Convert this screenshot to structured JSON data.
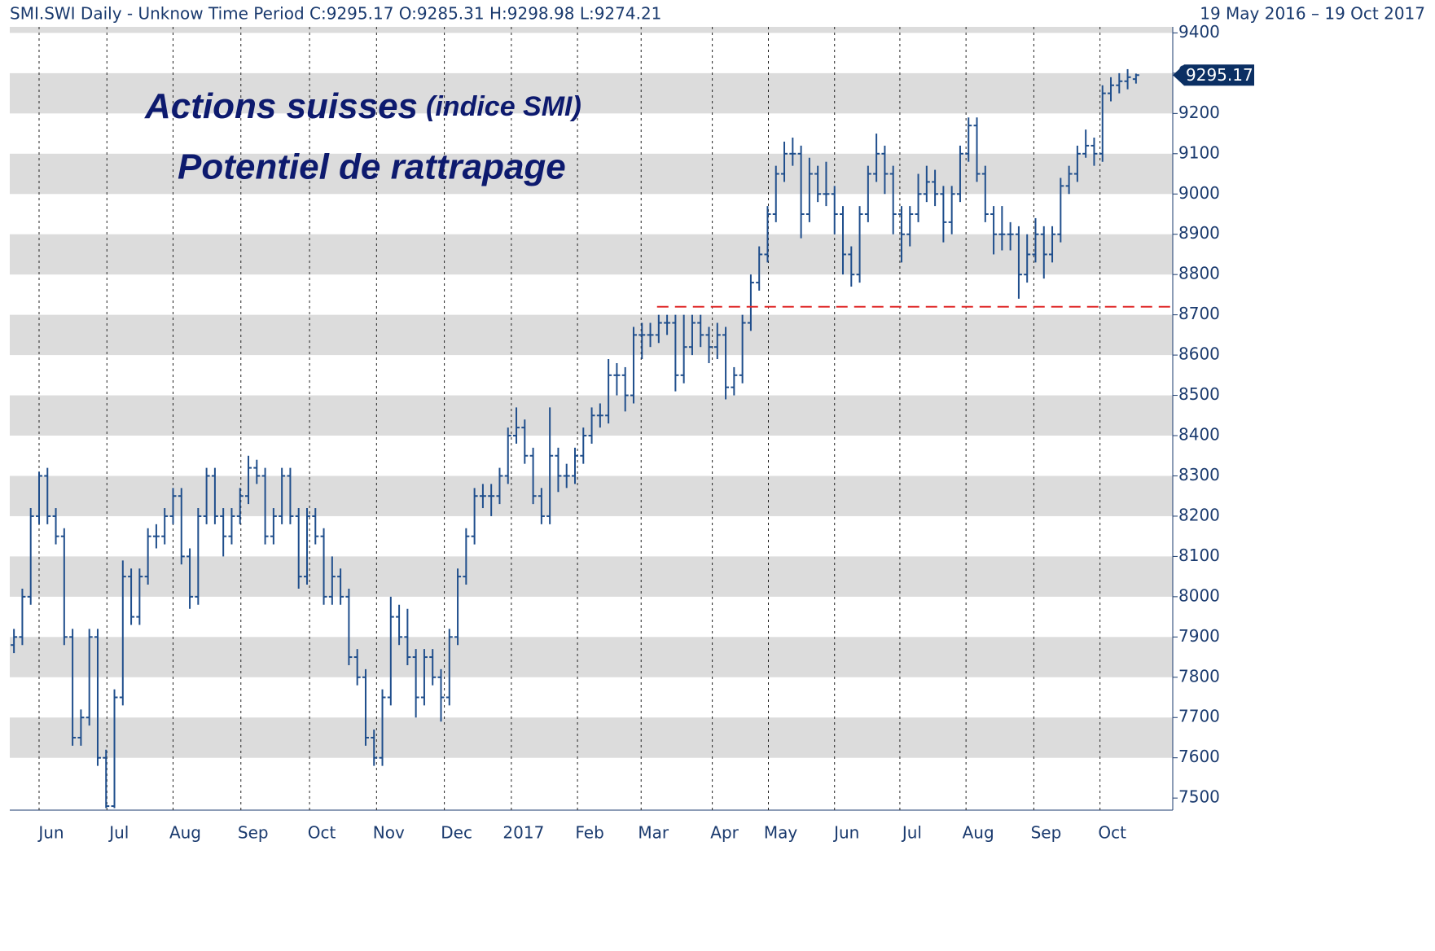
{
  "chart_data": {
    "type": "ohlc",
    "header": "SMI.SWI Daily -  Unknow Time Period   C:9295.17 O:9285.31 H:9298.98 L:9274.21",
    "date_range": "19 May 2016  –  19 Oct 2017",
    "annotation": {
      "line1": "Actions suisses",
      "line1_small": "(indice SMI)",
      "line2": "Potentiel de rattrapage"
    },
    "color": "#1f4e8c",
    "open": [
      7880,
      7900,
      8000,
      8200,
      8300,
      8200,
      8150,
      7900,
      7650,
      7700,
      7900,
      7600,
      7480,
      7750,
      8050,
      7950,
      8050,
      8150,
      8150,
      8200,
      8250,
      8100,
      8000,
      8200,
      8300,
      8200,
      8150,
      8200,
      8250,
      8320,
      8300,
      8150,
      8200,
      8300,
      8200,
      8050,
      8200,
      8150,
      8000,
      8050,
      8000,
      7850,
      7800,
      7650,
      7600,
      7750,
      7950,
      7900,
      7850,
      7750,
      7850,
      7800,
      7750,
      7900,
      8050,
      8150,
      8250,
      8250,
      8250,
      8300,
      8400,
      8420,
      8350,
      8250,
      8200,
      8350,
      8300,
      8300,
      8350,
      8400,
      8450,
      8450,
      8550,
      8550,
      8500,
      8650,
      8650,
      8650,
      8680,
      8680,
      8550,
      8620,
      8680,
      8650,
      8620,
      8650,
      8520,
      8550,
      8680,
      8780,
      8850,
      8950,
      9050,
      9100,
      9100,
      8950,
      9050,
      9000,
      9000,
      8950,
      8850,
      8800,
      8950,
      9050,
      9100,
      9050,
      8950,
      8900,
      8950,
      9000,
      9030,
      9000,
      8930,
      9000,
      9100,
      9170,
      9050,
      8950,
      8900,
      8900,
      8900,
      8800,
      8850,
      8900,
      8850,
      8900,
      9020,
      9050,
      9100,
      9120,
      9100,
      9250,
      9270,
      9280,
      9285.31
    ],
    "high": [
      7920,
      8020,
      8220,
      8310,
      8320,
      8220,
      8170,
      7920,
      7720,
      7920,
      7920,
      7620,
      7770,
      8090,
      8070,
      8070,
      8170,
      8180,
      8220,
      8270,
      8270,
      8120,
      8220,
      8320,
      8320,
      8220,
      8220,
      8270,
      8350,
      8340,
      8320,
      8220,
      8320,
      8320,
      8220,
      8220,
      8220,
      8170,
      8100,
      8070,
      8020,
      7870,
      7820,
      7670,
      7770,
      8000,
      7980,
      7970,
      7870,
      7870,
      7870,
      7820,
      7920,
      8070,
      8170,
      8270,
      8280,
      8280,
      8320,
      8420,
      8470,
      8440,
      8370,
      8270,
      8470,
      8370,
      8330,
      8370,
      8420,
      8470,
      8480,
      8590,
      8580,
      8570,
      8670,
      8680,
      8680,
      8700,
      8700,
      8700,
      8700,
      8700,
      8700,
      8670,
      8680,
      8670,
      8570,
      8700,
      8800,
      8870,
      8970,
      9070,
      9130,
      9140,
      9120,
      9090,
      9070,
      9080,
      9020,
      8970,
      8870,
      8970,
      9070,
      9150,
      9120,
      9070,
      8970,
      8970,
      9050,
      9070,
      9060,
      9020,
      9020,
      9120,
      9190,
      9190,
      9070,
      8970,
      8970,
      8930,
      8920,
      8900,
      8940,
      8920,
      8920,
      9040,
      9070,
      9120,
      9160,
      9140,
      9270,
      9290,
      9300,
      9310,
      9298.98
    ],
    "low": [
      7860,
      7880,
      7980,
      8180,
      8180,
      8130,
      7880,
      7630,
      7630,
      7680,
      7580,
      7475,
      7475,
      7730,
      7930,
      7930,
      8030,
      8120,
      8130,
      8180,
      8080,
      7970,
      7980,
      8180,
      8180,
      8100,
      8130,
      8180,
      8230,
      8280,
      8130,
      8130,
      8180,
      8180,
      8020,
      8030,
      8130,
      7980,
      7980,
      7980,
      7830,
      7780,
      7630,
      7580,
      7580,
      7730,
      7880,
      7830,
      7700,
      7730,
      7780,
      7690,
      7730,
      7880,
      8030,
      8130,
      8220,
      8200,
      8230,
      8280,
      8380,
      8330,
      8230,
      8180,
      8180,
      8260,
      8270,
      8280,
      8330,
      8380,
      8420,
      8430,
      8500,
      8460,
      8480,
      8590,
      8620,
      8630,
      8650,
      8510,
      8530,
      8600,
      8620,
      8580,
      8590,
      8490,
      8500,
      8530,
      8660,
      8760,
      8830,
      8930,
      9030,
      9070,
      8890,
      8930,
      8980,
      8970,
      8900,
      8800,
      8770,
      8780,
      8930,
      9030,
      9000,
      8900,
      8830,
      8870,
      8930,
      8980,
      8970,
      8880,
      8900,
      8980,
      9080,
      9030,
      8930,
      8850,
      8860,
      8860,
      8740,
      8780,
      8830,
      8790,
      8830,
      8880,
      9000,
      9030,
      9090,
      9070,
      9080,
      9230,
      9250,
      9260,
      9274.21
    ],
    "close": [
      7900,
      8000,
      8200,
      8300,
      8200,
      8150,
      7900,
      7650,
      7700,
      7900,
      7600,
      7480,
      7750,
      8050,
      7950,
      8050,
      8150,
      8150,
      8200,
      8250,
      8100,
      8000,
      8200,
      8300,
      8200,
      8150,
      8200,
      8250,
      8320,
      8300,
      8150,
      8200,
      8300,
      8200,
      8050,
      8200,
      8150,
      8000,
      8050,
      8000,
      7850,
      7800,
      7650,
      7600,
      7750,
      7950,
      7900,
      7850,
      7750,
      7850,
      7800,
      7750,
      7900,
      8050,
      8150,
      8250,
      8250,
      8250,
      8300,
      8400,
      8420,
      8350,
      8250,
      8200,
      8350,
      8300,
      8300,
      8350,
      8400,
      8450,
      8450,
      8550,
      8550,
      8500,
      8650,
      8650,
      8650,
      8680,
      8680,
      8550,
      8620,
      8680,
      8650,
      8620,
      8650,
      8520,
      8550,
      8680,
      8780,
      8850,
      8950,
      9050,
      9100,
      9100,
      8950,
      9050,
      9000,
      9000,
      8950,
      8850,
      8800,
      8950,
      9050,
      9100,
      9050,
      8950,
      8900,
      8950,
      9000,
      9030,
      9000,
      8930,
      9000,
      9100,
      9170,
      9050,
      8950,
      8900,
      8900,
      8900,
      8800,
      8850,
      8900,
      8850,
      8900,
      9020,
      9050,
      9100,
      9120,
      9100,
      9250,
      9270,
      9280,
      9290,
      9295.17
    ],
    "xlim": [
      -0.5,
      134.5
    ],
    "xticks": [
      {
        "value": 3.0,
        "label": "Jun"
      },
      {
        "value": 11.1,
        "label": "Jul"
      },
      {
        "value": 19.0,
        "label": "Aug"
      },
      {
        "value": 27.1,
        "label": "Sep"
      },
      {
        "value": 35.3,
        "label": "Oct"
      },
      {
        "value": 43.3,
        "label": "Nov"
      },
      {
        "value": 51.4,
        "label": "Dec"
      },
      {
        "value": 59.4,
        "label": "2017"
      },
      {
        "value": 67.3,
        "label": "Feb"
      },
      {
        "value": 74.9,
        "label": "Mar"
      },
      {
        "value": 83.4,
        "label": "Apr"
      },
      {
        "value": 90.1,
        "label": "May"
      },
      {
        "value": 98.0,
        "label": "Jun"
      },
      {
        "value": 105.8,
        "label": "Jul"
      },
      {
        "value": 113.7,
        "label": "Aug"
      },
      {
        "value": 121.8,
        "label": "Sep"
      },
      {
        "value": 129.7,
        "label": "Oct"
      }
    ],
    "ylim": [
      7470,
      9415
    ],
    "yticks": [
      7500,
      7600,
      7700,
      7800,
      7900,
      8000,
      8100,
      8200,
      8300,
      8400,
      8500,
      8600,
      8700,
      8800,
      8900,
      9000,
      9100,
      9200,
      9300,
      9400
    ],
    "hline": {
      "value": 8720,
      "from": 76.8,
      "color": "#e02828"
    },
    "band_color": "#dcdcdc"
  }
}
